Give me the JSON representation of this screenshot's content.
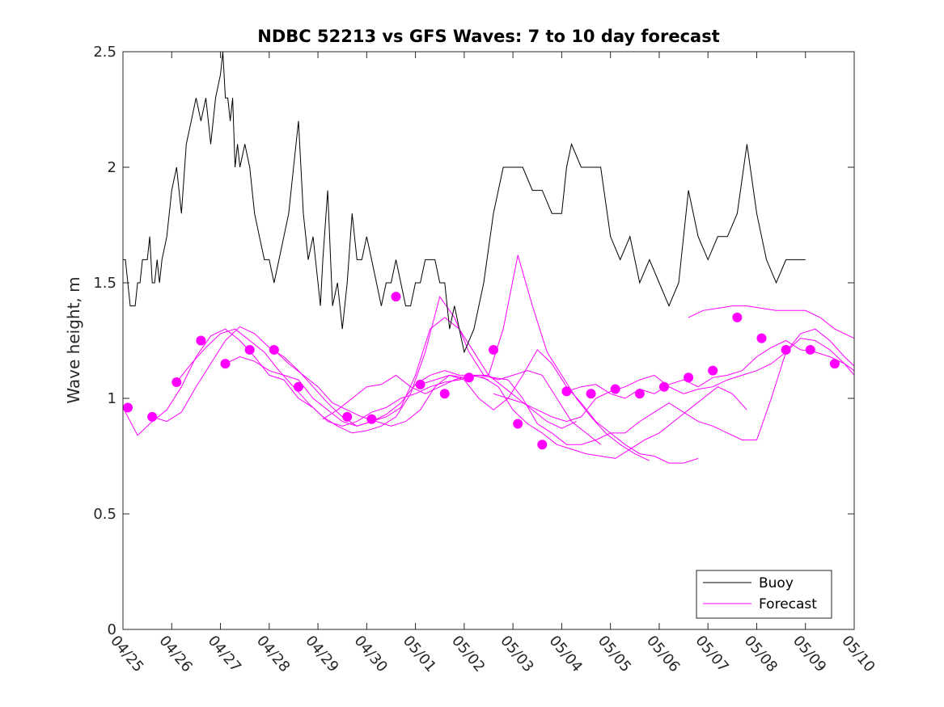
{
  "chart_data": {
    "type": "line",
    "title": "NDBC 52213 vs GFS Waves: 7 to 10 day forecast",
    "ylabel": "Wave height, m",
    "xlabel": "",
    "x_ticks": [
      "04/25",
      "04/26",
      "04/27",
      "04/28",
      "04/29",
      "04/30",
      "05/01",
      "05/02",
      "05/03",
      "05/04",
      "05/05",
      "05/06",
      "05/07",
      "05/08",
      "05/09",
      "05/10"
    ],
    "xlim_days": [
      0,
      15
    ],
    "ylim": [
      0,
      2.5
    ],
    "y_ticks": [
      "0",
      "0.5",
      "1",
      "1.5",
      "2",
      "2.5"
    ],
    "y_tick_values": [
      0,
      0.5,
      1,
      1.5,
      2,
      2.5
    ],
    "grid": false,
    "legend": {
      "placement": "bottom-right",
      "entries": [
        "Buoy",
        "Forecast"
      ]
    },
    "colors": {
      "buoy": "#000000",
      "forecast": "#ff00ff"
    },
    "series": [
      {
        "name": "Buoy",
        "x": [
          0,
          0.05,
          0.1,
          0.15,
          0.2,
          0.25,
          0.3,
          0.35,
          0.4,
          0.45,
          0.5,
          0.55,
          0.6,
          0.65,
          0.7,
          0.75,
          0.8,
          0.9,
          1.0,
          1.1,
          1.2,
          1.3,
          1.4,
          1.5,
          1.6,
          1.7,
          1.8,
          1.9,
          2.0,
          2.05,
          2.1,
          2.15,
          2.2,
          2.25,
          2.3,
          2.35,
          2.4,
          2.5,
          2.6,
          2.7,
          2.8,
          2.9,
          3.0,
          3.1,
          3.2,
          3.3,
          3.4,
          3.5,
          3.6,
          3.7,
          3.8,
          3.9,
          4.0,
          4.05,
          4.1,
          4.2,
          4.3,
          4.4,
          4.5,
          4.6,
          4.7,
          4.8,
          4.9,
          5.0,
          5.1,
          5.2,
          5.3,
          5.4,
          5.5,
          5.6,
          5.7,
          5.8,
          5.9,
          6.0,
          6.1,
          6.2,
          6.3,
          6.4,
          6.5,
          6.6,
          6.7,
          6.8,
          6.9,
          7.0,
          7.2,
          7.4,
          7.6,
          7.8,
          8.0,
          8.2,
          8.4,
          8.6,
          8.8,
          9.0,
          9.1,
          9.2,
          9.4,
          9.6,
          9.8,
          10.0,
          10.2,
          10.4,
          10.6,
          10.8,
          11.0,
          11.2,
          11.4,
          11.6,
          11.8,
          12.0,
          12.2,
          12.4,
          12.6,
          12.8,
          13.0,
          13.2,
          13.4,
          13.6,
          13.8,
          14.0
        ],
        "values": [
          1.6,
          1.6,
          1.5,
          1.4,
          1.4,
          1.4,
          1.5,
          1.5,
          1.6,
          1.6,
          1.6,
          1.7,
          1.5,
          1.5,
          1.6,
          1.5,
          1.6,
          1.7,
          1.9,
          2.0,
          1.8,
          2.1,
          2.2,
          2.3,
          2.2,
          2.3,
          2.1,
          2.3,
          2.4,
          2.5,
          2.3,
          2.3,
          2.2,
          2.3,
          2.0,
          2.1,
          2.0,
          2.1,
          2.0,
          1.8,
          1.7,
          1.6,
          1.6,
          1.5,
          1.6,
          1.7,
          1.8,
          2.0,
          2.2,
          1.8,
          1.6,
          1.7,
          1.5,
          1.4,
          1.6,
          1.9,
          1.4,
          1.5,
          1.3,
          1.5,
          1.8,
          1.6,
          1.6,
          1.7,
          1.6,
          1.5,
          1.4,
          1.5,
          1.5,
          1.6,
          1.5,
          1.4,
          1.4,
          1.5,
          1.5,
          1.6,
          1.6,
          1.6,
          1.5,
          1.5,
          1.3,
          1.4,
          1.3,
          1.2,
          1.3,
          1.5,
          1.8,
          2.0,
          2.0,
          2.0,
          1.9,
          1.9,
          1.8,
          1.8,
          2.0,
          2.1,
          2.0,
          2.0,
          2.0,
          1.7,
          1.6,
          1.7,
          1.5,
          1.6,
          1.5,
          1.4,
          1.5,
          1.9,
          1.7,
          1.6,
          1.7,
          1.7,
          1.8,
          2.1,
          1.8,
          1.6,
          1.5,
          1.6,
          1.6,
          1.6
        ]
      },
      {
        "name": "Forecast",
        "runs": [
          {
            "x": [
              0,
              0.3,
              0.6,
              0.9,
              1.2,
              1.5,
              1.8,
              2.1,
              2.4,
              2.7,
              3.0,
              3.3,
              3.6,
              3.9,
              4.2,
              4.5,
              4.8,
              5.1,
              5.4,
              5.7,
              6.0,
              6.3,
              6.6,
              6.9,
              7.2,
              7.5
            ],
            "values": [
              0.96,
              0.84,
              0.9,
              0.95,
              1.05,
              1.18,
              1.27,
              1.3,
              1.25,
              1.18,
              1.1,
              1.08,
              1.0,
              0.96,
              0.9,
              0.88,
              0.9,
              0.94,
              0.96,
              1.0,
              1.02,
              1.05,
              1.07,
              1.08,
              1.1,
              1.08
            ]
          },
          {
            "x": [
              0.6,
              0.9,
              1.2,
              1.5,
              1.8,
              2.1,
              2.4,
              2.7,
              3.0,
              3.3,
              3.6,
              3.9,
              4.2,
              4.5,
              4.8,
              5.1,
              5.4,
              5.7,
              6.0,
              6.3,
              6.6,
              6.9,
              7.2,
              7.5,
              7.8,
              8.1,
              8.4,
              8.7,
              9.0,
              9.3
            ],
            "values": [
              0.92,
              0.9,
              0.94,
              1.05,
              1.15,
              1.25,
              1.31,
              1.28,
              1.22,
              1.18,
              1.12,
              1.05,
              0.98,
              0.92,
              0.88,
              0.9,
              0.92,
              0.96,
              1.1,
              1.3,
              1.35,
              1.3,
              1.2,
              1.1,
              1.05,
              1.0,
              0.95,
              0.9,
              0.87,
              0.9
            ]
          },
          {
            "x": [
              1.1,
              1.4,
              1.7,
              2.0,
              2.3,
              2.6,
              2.9,
              3.2,
              3.5,
              3.8,
              4.1,
              4.4,
              4.7,
              5.0,
              5.3,
              5.6,
              5.9,
              6.2,
              6.5,
              6.8,
              7.1,
              7.4,
              7.7,
              8.0,
              8.3,
              8.6,
              8.9,
              9.2,
              9.5,
              9.8
            ],
            "values": [
              1.07,
              1.15,
              1.22,
              1.28,
              1.3,
              1.25,
              1.2,
              1.12,
              1.05,
              0.98,
              0.92,
              0.88,
              0.85,
              0.86,
              0.88,
              0.92,
              1.02,
              1.2,
              1.44,
              1.35,
              1.2,
              1.1,
              1.08,
              1.1,
              1.12,
              1.1,
              1.0,
              0.9,
              0.85,
              0.8
            ]
          },
          {
            "x": [
              2.1,
              2.4,
              2.7,
              3.0,
              3.3,
              3.6,
              3.9,
              4.2,
              4.5,
              4.8,
              5.1,
              5.4,
              5.7,
              6.0,
              6.3,
              6.6,
              6.9,
              7.2,
              7.5,
              7.8,
              8.1,
              8.4,
              8.7,
              9.0,
              9.3,
              9.6,
              9.9,
              10.2,
              10.5,
              10.8
            ],
            "values": [
              1.15,
              1.18,
              1.16,
              1.12,
              1.1,
              1.08,
              1.0,
              0.95,
              0.9,
              0.88,
              0.9,
              0.93,
              0.98,
              1.06,
              1.1,
              1.12,
              1.1,
              1.1,
              1.1,
              1.3,
              1.62,
              1.4,
              1.2,
              1.1,
              1.0,
              0.92,
              0.85,
              0.8,
              0.76,
              0.73
            ]
          },
          {
            "x": [
              3.1,
              3.4,
              3.7,
              4.0,
              4.3,
              4.6,
              4.9,
              5.2,
              5.5,
              5.8,
              6.1,
              6.4,
              6.7,
              7.0,
              7.3,
              7.6,
              7.9,
              8.2,
              8.5,
              8.8,
              9.1,
              9.4,
              9.7,
              10.0,
              10.3,
              10.6,
              10.9,
              11.2,
              11.5,
              11.8
            ],
            "values": [
              1.21,
              1.15,
              1.1,
              1.05,
              0.98,
              0.95,
              0.92,
              0.9,
              0.88,
              0.9,
              0.95,
              1.05,
              1.1,
              1.08,
              1.0,
              0.95,
              1.0,
              1.1,
              1.21,
              1.15,
              1.05,
              0.98,
              0.9,
              0.85,
              0.8,
              0.76,
              0.75,
              0.72,
              0.72,
              0.74
            ]
          },
          {
            "x": [
              4.1,
              4.4,
              4.7,
              5.0,
              5.3,
              5.6,
              5.9,
              6.2,
              6.5,
              6.8,
              7.1,
              7.4,
              7.7,
              8.0,
              8.3,
              8.6,
              8.9,
              9.2,
              9.5,
              9.8,
              10.1,
              10.4,
              10.7,
              11.0,
              11.3,
              11.6,
              11.9,
              12.2,
              12.5,
              12.8
            ],
            "values": [
              0.91,
              0.95,
              1.0,
              1.05,
              1.06,
              1.1,
              1.05,
              1.02,
              1.05,
              1.08,
              1.1,
              1.09,
              1.05,
              0.95,
              0.89,
              0.85,
              0.8,
              0.78,
              0.76,
              0.75,
              0.74,
              0.78,
              0.82,
              0.85,
              0.9,
              0.95,
              1.0,
              1.05,
              1.02,
              0.95
            ]
          },
          {
            "x": [
              6.1,
              6.4,
              6.7,
              7.0,
              7.3,
              7.6,
              7.9,
              8.2,
              8.5,
              8.8,
              9.1,
              9.4,
              9.7,
              10.0,
              10.3,
              10.6,
              10.9,
              11.2,
              11.5,
              11.8,
              12.1,
              12.4,
              12.7,
              13.0,
              13.3,
              13.6,
              13.9,
              14.2,
              14.5,
              14.8,
              15.0
            ],
            "values": [
              1.06,
              1.08,
              1.1,
              1.09,
              1.1,
              1.09,
              1.08,
              1.0,
              0.89,
              0.85,
              0.8,
              0.8,
              0.82,
              0.85,
              0.85,
              0.9,
              0.94,
              0.98,
              0.94,
              0.9,
              0.88,
              0.85,
              0.82,
              0.82,
              1.0,
              1.2,
              1.28,
              1.3,
              1.25,
              1.18,
              1.14
            ]
          },
          {
            "x": [
              7.6,
              7.9,
              8.2,
              8.5,
              8.8,
              9.1,
              9.4,
              9.7,
              10.0,
              10.3,
              10.6,
              10.9,
              11.2,
              11.5,
              11.8,
              12.1,
              12.4,
              12.7,
              13.0,
              13.3,
              13.6,
              13.9,
              14.2,
              14.5,
              14.8,
              15.0
            ],
            "values": [
              1.02,
              1.0,
              0.98,
              0.95,
              0.92,
              0.9,
              0.92,
              1.0,
              1.03,
              1.05,
              1.08,
              1.1,
              1.05,
              1.02,
              1.04,
              1.05,
              1.08,
              1.1,
              1.12,
              1.15,
              1.2,
              1.26,
              1.25,
              1.21,
              1.15,
              1.1
            ]
          },
          {
            "x": [
              9.1,
              9.4,
              9.7,
              10.0,
              10.3,
              10.6,
              10.9,
              11.2,
              11.5,
              11.8,
              12.1,
              12.4,
              12.7,
              13.0,
              13.3,
              13.6,
              13.9,
              14.2,
              14.5,
              14.8,
              15.0
            ],
            "values": [
              1.03,
              1.05,
              1.06,
              1.02,
              1.0,
              1.04,
              1.02,
              1.06,
              1.08,
              1.05,
              1.09,
              1.1,
              1.12,
              1.18,
              1.22,
              1.25,
              1.21,
              1.2,
              1.18,
              1.15,
              1.12
            ]
          },
          {
            "x": [
              11.6,
              11.9,
              12.2,
              12.5,
              12.8,
              13.1,
              13.4,
              13.7,
              14.0,
              14.3,
              14.6,
              14.9,
              15.0
            ],
            "values": [
              1.35,
              1.38,
              1.39,
              1.4,
              1.4,
              1.39,
              1.38,
              1.38,
              1.38,
              1.35,
              1.3,
              1.27,
              1.26
            ]
          }
        ],
        "markers": {
          "x": [
            0.1,
            0.6,
            1.1,
            1.6,
            2.1,
            2.6,
            3.1,
            3.6,
            4.6,
            5.1,
            5.6,
            6.1,
            6.6,
            7.1,
            7.6,
            8.1,
            8.6,
            9.1,
            9.6,
            10.1,
            10.6,
            11.1,
            11.6,
            12.1,
            12.6,
            13.1,
            13.6,
            14.1,
            14.6
          ],
          "values": [
            0.96,
            0.92,
            1.07,
            1.25,
            1.15,
            1.21,
            1.21,
            1.05,
            0.92,
            0.91,
            1.44,
            1.06,
            1.02,
            1.09,
            1.21,
            0.89,
            0.8,
            1.03,
            1.02,
            1.04,
            1.02,
            1.05,
            1.09,
            1.12,
            1.35,
            1.26,
            1.21,
            1.21,
            1.15
          ]
        }
      }
    ]
  }
}
